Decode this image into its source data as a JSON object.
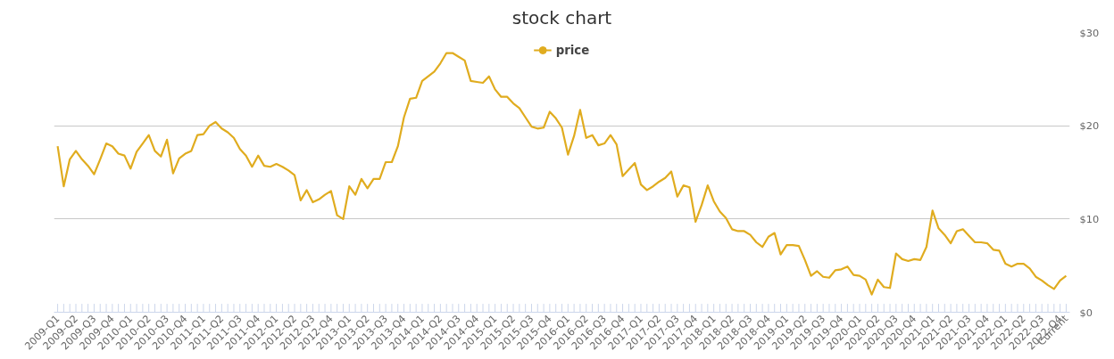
{
  "chart_data": {
    "type": "line",
    "title": "stock chart",
    "categories": [
      "2009-Q1",
      null,
      null,
      "2009-Q2",
      null,
      null,
      "2009-Q3",
      null,
      null,
      "2009-Q4",
      null,
      null,
      "2010-Q1",
      null,
      null,
      "2010-Q2",
      null,
      null,
      "2010-Q3",
      null,
      null,
      "2010-Q4",
      null,
      null,
      "2011-Q1",
      null,
      null,
      "2011-Q2",
      null,
      null,
      "2011-Q3",
      null,
      null,
      "2011-Q4",
      null,
      null,
      "2012-Q1",
      null,
      null,
      "2012-Q2",
      null,
      null,
      "2012-Q3",
      null,
      null,
      "2012-Q4",
      null,
      null,
      "2013-Q1",
      null,
      null,
      "2013-Q2",
      null,
      null,
      "2013-Q3",
      null,
      null,
      "2013-Q4",
      null,
      null,
      "2014-Q1",
      null,
      null,
      "2014-Q2",
      null,
      null,
      "2014-Q3",
      null,
      null,
      "2014-Q4",
      null,
      null,
      "2015-Q1",
      null,
      null,
      "2015-Q2",
      null,
      null,
      "2015-Q3",
      null,
      null,
      "2015-Q4",
      null,
      null,
      "2016-Q1",
      null,
      null,
      "2016-Q2",
      null,
      null,
      "2016-Q3",
      null,
      null,
      "2016-Q4",
      null,
      null,
      "2017-Q1",
      null,
      null,
      "2017-Q2",
      null,
      null,
      "2017-Q3",
      null,
      null,
      "2017-Q4",
      null,
      null,
      "2018-Q1",
      null,
      null,
      "2018-Q2",
      null,
      null,
      "2018-Q3",
      null,
      null,
      "2018-Q4",
      null,
      null,
      "2019-Q1",
      null,
      null,
      "2019-Q2",
      null,
      null,
      "2019-Q3",
      null,
      null,
      "2019-Q4",
      null,
      null,
      "2020-Q1",
      null,
      null,
      "2020-Q2",
      null,
      null,
      "2020-Q3",
      null,
      null,
      "2020-Q4",
      null,
      null,
      "2021-Q1",
      null,
      null,
      "2021-Q2",
      null,
      null,
      "2021-Q3",
      null,
      null,
      "2021-Q4",
      null,
      null,
      "2022-Q1",
      null,
      null,
      "2022-Q2",
      null,
      null,
      "2022-Q3",
      null,
      null,
      "2022-Q4",
      "Current"
    ],
    "series": [
      {
        "name": "price",
        "color": "#e0ac1f",
        "values": [
          17.8,
          13.5,
          16.4,
          17.3,
          16.4,
          15.7,
          14.8,
          16.4,
          18.1,
          17.8,
          17.0,
          16.8,
          15.4,
          17.2,
          18.1,
          19.0,
          17.3,
          16.7,
          18.5,
          14.9,
          16.5,
          17.0,
          17.3,
          19.0,
          19.1,
          20.0,
          20.4,
          19.7,
          19.3,
          18.7,
          17.5,
          16.8,
          15.6,
          16.8,
          15.7,
          15.6,
          15.9,
          15.6,
          15.2,
          14.7,
          12.0,
          13.1,
          11.8,
          12.1,
          12.6,
          13.0,
          10.4,
          10.0,
          13.5,
          12.6,
          14.3,
          13.3,
          14.3,
          14.3,
          16.1,
          16.1,
          17.8,
          20.9,
          22.9,
          23.0,
          24.8,
          25.3,
          25.8,
          26.7,
          27.8,
          27.8,
          27.4,
          27.0,
          24.8,
          24.7,
          24.6,
          25.3,
          23.9,
          23.1,
          23.1,
          22.4,
          21.9,
          20.9,
          19.9,
          19.7,
          19.8,
          21.5,
          20.8,
          19.8,
          16.9,
          18.9,
          21.7,
          18.7,
          19.0,
          17.9,
          18.1,
          19.0,
          18.0,
          14.6,
          15.3,
          16.0,
          13.7,
          13.1,
          13.5,
          14.0,
          14.4,
          15.1,
          12.4,
          13.6,
          13.4,
          9.7,
          11.5,
          13.6,
          11.9,
          10.8,
          10.1,
          8.9,
          8.7,
          8.7,
          8.3,
          7.5,
          7.0,
          8.1,
          8.5,
          6.2,
          7.2,
          7.2,
          7.1,
          5.6,
          3.9,
          4.4,
          3.8,
          3.7,
          4.5,
          4.6,
          4.9,
          4.0,
          3.9,
          3.5,
          1.9,
          3.5,
          2.7,
          2.6,
          6.3,
          5.7,
          5.5,
          5.7,
          5.6,
          7.0,
          10.9,
          9.0,
          8.3,
          7.4,
          8.7,
          8.9,
          8.2,
          7.5,
          7.5,
          7.4,
          6.7,
          6.6,
          5.2,
          4.9,
          5.2,
          5.2,
          4.7,
          3.8,
          3.4,
          2.9,
          2.5,
          3.4,
          3.9
        ]
      }
    ],
    "ylim": [
      0,
      30
    ],
    "yticks": [
      {
        "value": 0,
        "label": "$0"
      },
      {
        "value": 10,
        "label": "$10"
      },
      {
        "value": 20,
        "label": "$20"
      },
      {
        "value": 30,
        "label": "$30"
      }
    ],
    "grid": "y",
    "legend": "top",
    "line_style": "solid"
  }
}
